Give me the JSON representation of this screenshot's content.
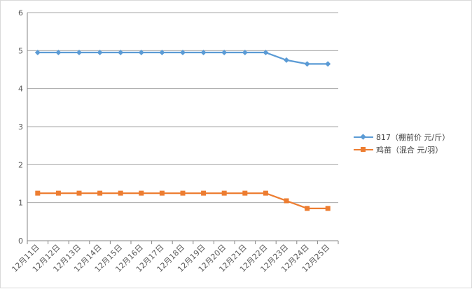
{
  "chart_data": {
    "type": "line",
    "categories": [
      "12月11日",
      "12月12日",
      "12月13日",
      "12月14日",
      "12月15日",
      "12月16日",
      "12月17日",
      "12月18日",
      "12月19日",
      "12月20日",
      "12月21日",
      "12月22日",
      "12月23日",
      "12月24日",
      "12月25日"
    ],
    "series": [
      {
        "name": "817（棚前价 元/斤）",
        "values": [
          4.95,
          4.95,
          4.95,
          4.95,
          4.95,
          4.95,
          4.95,
          4.95,
          4.95,
          4.95,
          4.95,
          4.95,
          4.75,
          4.65,
          4.65
        ],
        "color": "#5b9bd5",
        "marker": "diamond"
      },
      {
        "name": "鸡苗（混合 元/羽）",
        "values": [
          1.25,
          1.25,
          1.25,
          1.25,
          1.25,
          1.25,
          1.25,
          1.25,
          1.25,
          1.25,
          1.25,
          1.25,
          1.05,
          0.85,
          0.85
        ],
        "color": "#ed7d31",
        "marker": "square"
      }
    ],
    "y_ticks": [
      "0",
      "1",
      "2",
      "3",
      "4",
      "5",
      "6"
    ],
    "ylim": [
      0,
      6
    ],
    "grid": true,
    "legend_position": "right",
    "title": "",
    "xlabel": "",
    "ylabel": ""
  }
}
